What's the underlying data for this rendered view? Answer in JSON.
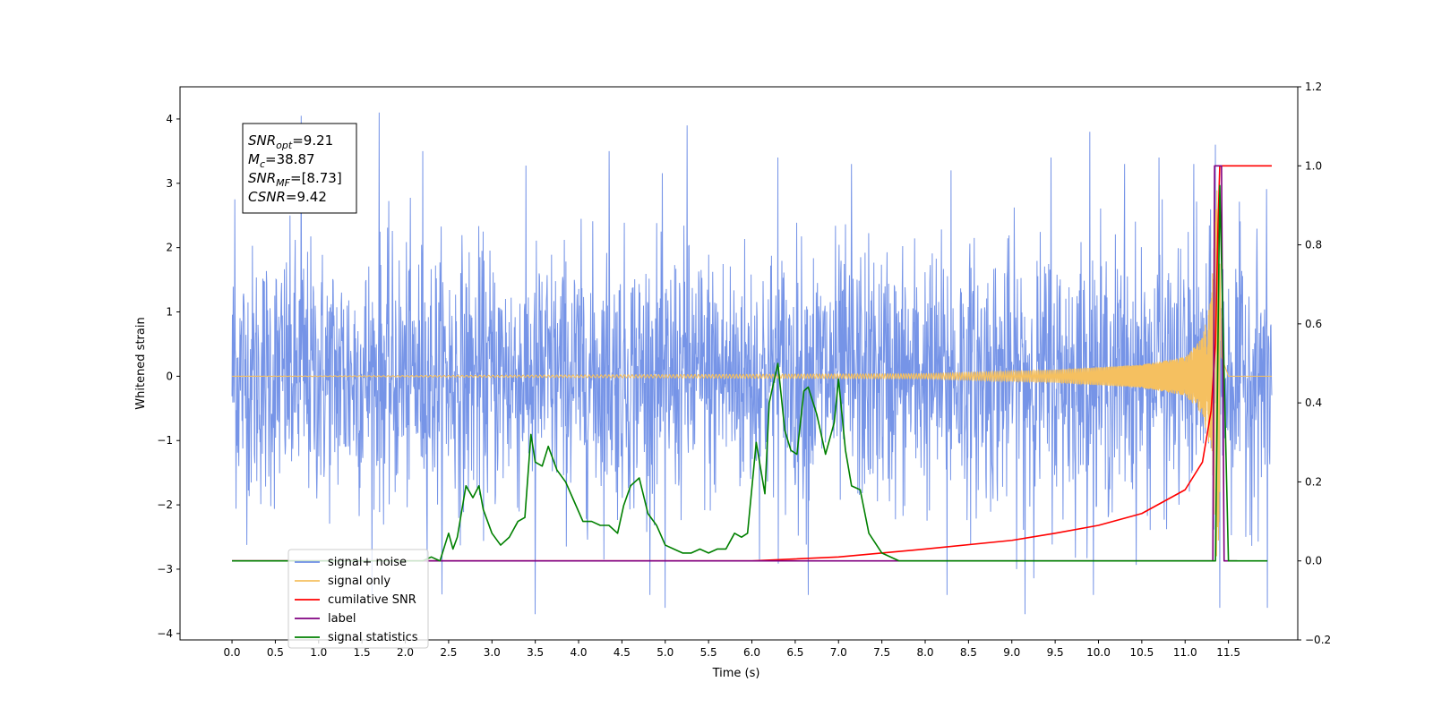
{
  "chart_data": {
    "type": "line",
    "xlabel": "Time (s)",
    "ylabel": "Whitened strain",
    "xlim": [
      -0.6,
      12.3
    ],
    "ylim": [
      -4.1,
      4.5
    ],
    "y2lim": [
      -0.2,
      1.2
    ],
    "xticks": [
      "0.0",
      "0.5",
      "1.0",
      "1.5",
      "2.0",
      "2.5",
      "3.0",
      "3.5",
      "4.0",
      "4.5",
      "5.0",
      "5.5",
      "6.0",
      "6.5",
      "7.0",
      "7.5",
      "8.0",
      "8.5",
      "9.0",
      "9.5",
      "10.0",
      "10.5",
      "11.0",
      "11.5"
    ],
    "yticks": [
      "4",
      "3",
      "2",
      "1",
      "0",
      "−1",
      "−2",
      "−3",
      "−4"
    ],
    "y2ticks": [
      "1.2",
      "1.0",
      "0.8",
      "0.6",
      "0.4",
      "0.2",
      "0.0",
      "−0.2"
    ],
    "grid": false,
    "legend_position": "lower-left",
    "annotation": {
      "lines": [
        {
          "base": "SNR",
          "sub": "opt",
          "value": "=9.21"
        },
        {
          "base": "M",
          "sub": "c",
          "value": "=38.87"
        },
        {
          "base": "SNR",
          "sub": "MF",
          "value": "=[8.73]"
        },
        {
          "base": "CSNR",
          "sub": "",
          "value": "=9.42"
        }
      ]
    },
    "series": [
      {
        "name": "signal+ noise",
        "color": "#6f8ee6",
        "axis": "left",
        "x_range": [
          0.0,
          12.0
        ],
        "noise_sigma": 1.0,
        "spikes": [
          [
            0.03,
            2.75
          ],
          [
            0.8,
            4.05
          ],
          [
            1.7,
            4.1
          ],
          [
            2.2,
            3.5
          ],
          [
            3.5,
            -3.7
          ],
          [
            4.35,
            3.5
          ],
          [
            5.0,
            -3.6
          ],
          [
            5.25,
            3.9
          ],
          [
            6.3,
            3.4
          ],
          [
            7.15,
            3.3
          ],
          [
            8.3,
            3.2
          ],
          [
            9.45,
            3.4
          ],
          [
            9.9,
            3.8
          ],
          [
            10.3,
            3.3
          ],
          [
            10.7,
            3.4
          ],
          [
            11.1,
            3.3
          ],
          [
            11.35,
            3.6
          ],
          [
            11.4,
            -3.6
          ],
          [
            11.95,
            -3.6
          ],
          [
            9.15,
            -3.7
          ],
          [
            8.25,
            -3.4
          ],
          [
            6.65,
            -3.4
          ]
        ]
      },
      {
        "name": "signal only",
        "color": "#f5c060",
        "axis": "left",
        "x": [
          0.0,
          8.0,
          9.5,
          10.5,
          11.0,
          11.2,
          11.3,
          11.38,
          11.42,
          11.5,
          12.0
        ],
        "amplitude": [
          0.0,
          0.04,
          0.1,
          0.18,
          0.3,
          0.6,
          1.2,
          3.2,
          0.3,
          0.0,
          0.0
        ]
      },
      {
        "name": "cumilative SNR",
        "color": "#ff0000",
        "axis": "right",
        "x": [
          0.0,
          6.0,
          7.0,
          8.0,
          9.0,
          9.5,
          10.0,
          10.5,
          11.0,
          11.2,
          11.3,
          11.35,
          11.38,
          11.4,
          12.0
        ],
        "y": [
          0.0,
          0.0,
          0.01,
          0.03,
          0.052,
          0.07,
          0.09,
          0.12,
          0.18,
          0.25,
          0.38,
          0.55,
          0.85,
          1.0,
          1.0
        ]
      },
      {
        "name": "label",
        "color": "#800080",
        "axis": "right",
        "x": [
          0.0,
          11.32,
          11.34,
          11.42,
          11.45,
          11.6
        ],
        "y": [
          0.0,
          0.0,
          1.0,
          1.0,
          0.0,
          0.0
        ]
      },
      {
        "name": "signal statistics",
        "color": "#008000",
        "axis": "right",
        "x": [
          0.0,
          2.2,
          2.3,
          2.4,
          2.5,
          2.55,
          2.6,
          2.7,
          2.78,
          2.85,
          2.9,
          3.0,
          3.1,
          3.2,
          3.3,
          3.38,
          3.45,
          3.5,
          3.58,
          3.65,
          3.75,
          3.85,
          3.95,
          4.05,
          4.15,
          4.25,
          4.35,
          4.45,
          4.52,
          4.6,
          4.7,
          4.8,
          4.9,
          5.0,
          5.1,
          5.2,
          5.3,
          5.4,
          5.5,
          5.6,
          5.7,
          5.8,
          5.88,
          5.95,
          6.05,
          6.15,
          6.2,
          6.3,
          6.38,
          6.45,
          6.52,
          6.6,
          6.65,
          6.75,
          6.85,
          6.95,
          7.0,
          7.08,
          7.15,
          7.25,
          7.35,
          7.5,
          7.7,
          8.0,
          8.5,
          11.35,
          11.4,
          11.5,
          11.95
        ],
        "y": [
          0.0,
          0.0,
          0.01,
          0.0,
          0.07,
          0.03,
          0.06,
          0.19,
          0.16,
          0.19,
          0.13,
          0.07,
          0.04,
          0.06,
          0.1,
          0.11,
          0.32,
          0.25,
          0.24,
          0.29,
          0.23,
          0.2,
          0.15,
          0.1,
          0.1,
          0.09,
          0.09,
          0.07,
          0.14,
          0.19,
          0.21,
          0.12,
          0.09,
          0.04,
          0.03,
          0.02,
          0.02,
          0.03,
          0.02,
          0.03,
          0.03,
          0.07,
          0.06,
          0.07,
          0.3,
          0.17,
          0.4,
          0.5,
          0.33,
          0.28,
          0.27,
          0.43,
          0.44,
          0.37,
          0.27,
          0.35,
          0.46,
          0.28,
          0.19,
          0.18,
          0.07,
          0.02,
          0.0,
          0.0,
          0.0,
          0.0,
          0.95,
          0.0,
          0.0
        ]
      }
    ]
  }
}
